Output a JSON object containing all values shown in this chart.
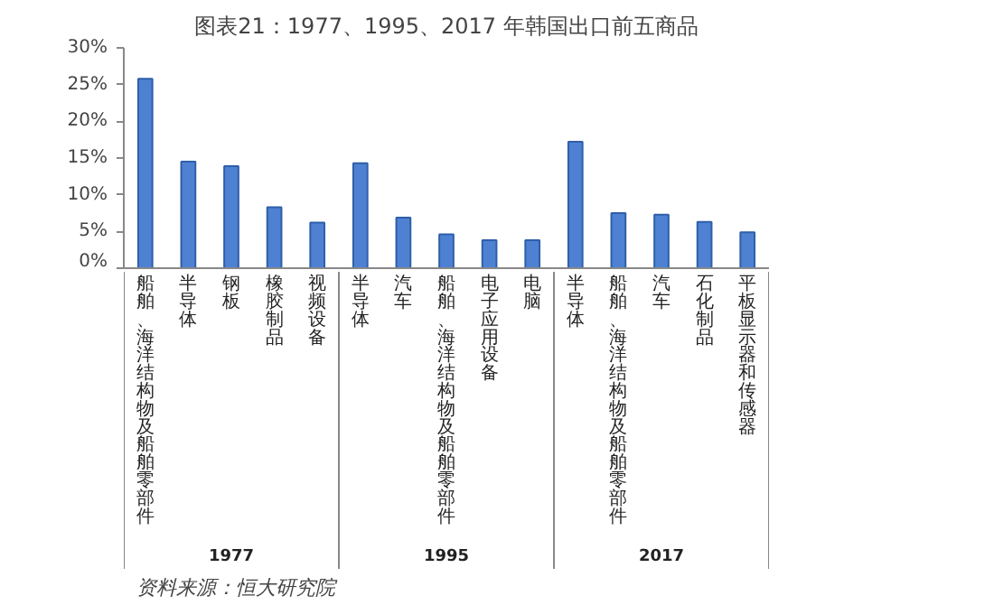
{
  "chart_data": {
    "type": "bar",
    "title": "图表21：1977、1995、2017 年韩国出口前五商品",
    "categories": [
      "船舶、海洋结构物及船舶零部件",
      "半导体",
      "钢板",
      "橡胶制品",
      "视频设备",
      "半导体",
      "汽车",
      "船舶、海洋结构物及船舶零部件",
      "电子应用设备",
      "电脑",
      "半导体",
      "船舶、海洋结构物及船舶零部件",
      "汽车",
      "石化制品",
      "平板显示器和传感器"
    ],
    "values": [
      25.8,
      14.5,
      13.9,
      8.3,
      6.2,
      14.3,
      6.9,
      4.6,
      3.8,
      3.8,
      17.2,
      7.5,
      7.3,
      6.3,
      4.9
    ],
    "color": "#4f81d3",
    "ylim": [
      0,
      30
    ],
    "yticks": [
      {
        "value": 0,
        "label": "0%"
      },
      {
        "value": 5,
        "label": "5%"
      },
      {
        "value": 10,
        "label": "10%"
      },
      {
        "value": 15,
        "label": "15%"
      },
      {
        "value": 20,
        "label": "20%"
      },
      {
        "value": 25,
        "label": "25%"
      },
      {
        "value": 30,
        "label": "30%"
      }
    ],
    "annotations": [
      "1977",
      "1995",
      "2017",
      "资料来源：恒大研究院"
    ]
  }
}
